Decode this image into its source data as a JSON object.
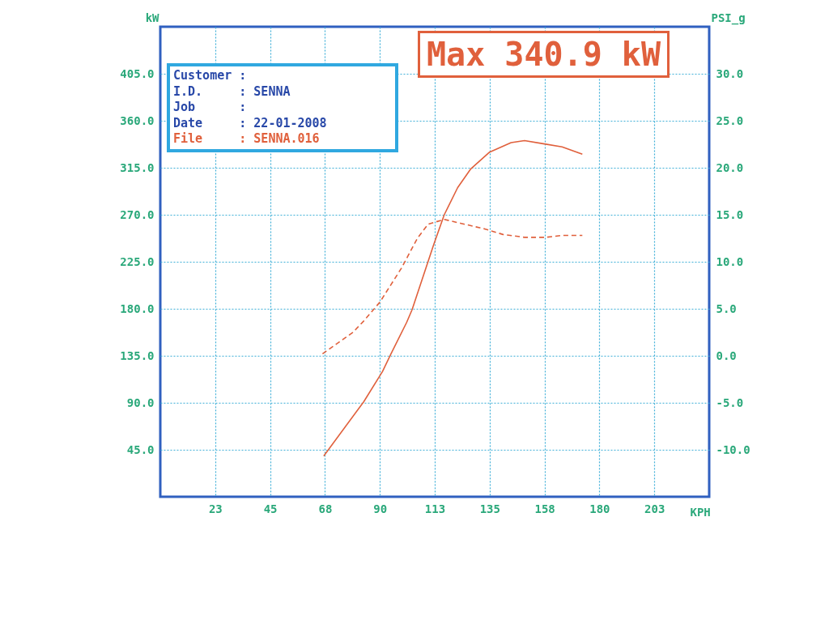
{
  "chart_data": {
    "type": "line",
    "xlabel": "KPH",
    "ylabel": "kW",
    "y2label": "PSI_g",
    "xlim": [
      0,
      225
    ],
    "xticks": [
      {
        "value": 22.5,
        "label": "23"
      },
      45,
      {
        "value": 67.5,
        "label": "68"
      },
      90,
      {
        "value": 112.5,
        "label": "113"
      },
      135,
      {
        "value": 157.5,
        "label": "158"
      },
      180,
      {
        "value": 202.5,
        "label": "203"
      }
    ],
    "ylim": [
      0,
      450
    ],
    "yticks": [
      {
        "value": 45,
        "label": "45.0"
      },
      {
        "value": 90,
        "label": "90.0"
      },
      {
        "value": 135,
        "label": "135.0"
      },
      {
        "value": 180,
        "label": "180.0"
      },
      {
        "value": 225,
        "label": "225.0"
      },
      {
        "value": 270,
        "label": "270.0"
      },
      {
        "value": 315,
        "label": "315.0"
      },
      {
        "value": 360,
        "label": "360.0"
      },
      {
        "value": 405,
        "label": "405.0"
      }
    ],
    "y2lim": [
      -15,
      35
    ],
    "y2ticks": [
      {
        "value": -10,
        "label": "-10.0"
      },
      {
        "value": -5,
        "label": "-5.0"
      },
      {
        "value": 0,
        "label": "0.0"
      },
      {
        "value": 5,
        "label": "5.0"
      },
      {
        "value": 10,
        "label": "10.0"
      },
      {
        "value": 15,
        "label": "15.0"
      },
      {
        "value": 20,
        "label": "20.0"
      },
      {
        "value": 25,
        "label": "25.0"
      },
      {
        "value": 30,
        "label": "30.0"
      }
    ],
    "grid": true,
    "series": [
      {
        "color": "#e0603c",
        "line_style": "solid",
        "x": [
          67.0,
          83.4,
          91.1,
          94.4,
          101.0,
          103.2,
          112.0,
          116.4,
          121.9,
          127.3,
          135.0,
          143.8,
          149.3,
          157.0,
          164.7,
          173.0
        ],
        "values": [
          39,
          91,
          120,
          136,
          167,
          179,
          241,
          270,
          296,
          314,
          330,
          339,
          341,
          338,
          335,
          328
        ]
      },
      {
        "color": "#e0603c",
        "line_style": "dashed",
        "axis": "y2",
        "x": [
          66.5,
          79.0,
          83.4,
          90.0,
          98.8,
          105.4,
          109.8,
          116.4,
          123.0,
          132.9,
          140.5,
          149.3,
          158.0,
          164.7,
          173.0
        ],
        "values": [
          0.2,
          2.5,
          3.7,
          5.7,
          9.3,
          12.5,
          14.0,
          14.5,
          14.1,
          13.5,
          12.9,
          12.6,
          12.6,
          12.8,
          12.8
        ]
      }
    ],
    "annotations": [
      "Customer :",
      "I.D.     : SENNA",
      "Job      :",
      "Date     : 22-01-2008",
      "File     : SENNA.016",
      "Max 340.9 kW"
    ]
  }
}
